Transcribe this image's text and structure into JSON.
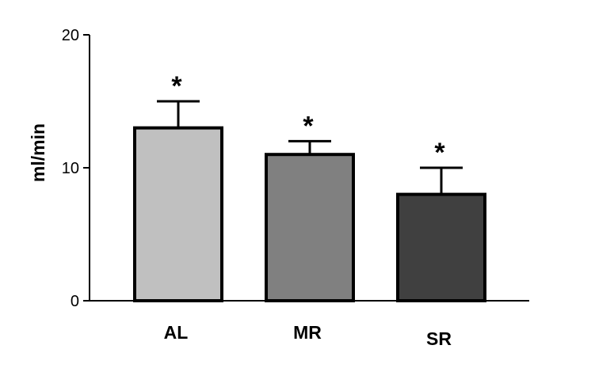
{
  "chart_data": {
    "type": "bar",
    "categories": [
      "AL",
      "MR",
      "SR"
    ],
    "values": [
      13,
      11,
      8
    ],
    "errors": [
      2,
      1,
      2
    ],
    "annotations": [
      "*",
      "*",
      "*"
    ],
    "colors": [
      "#c0c0c0",
      "#808080",
      "#404040"
    ],
    "ylabel": "ml/min",
    "xlabel": "",
    "title": "",
    "ylim": [
      0,
      20
    ],
    "yticks": [
      0,
      10,
      20
    ],
    "grid": false,
    "legend": "none"
  }
}
